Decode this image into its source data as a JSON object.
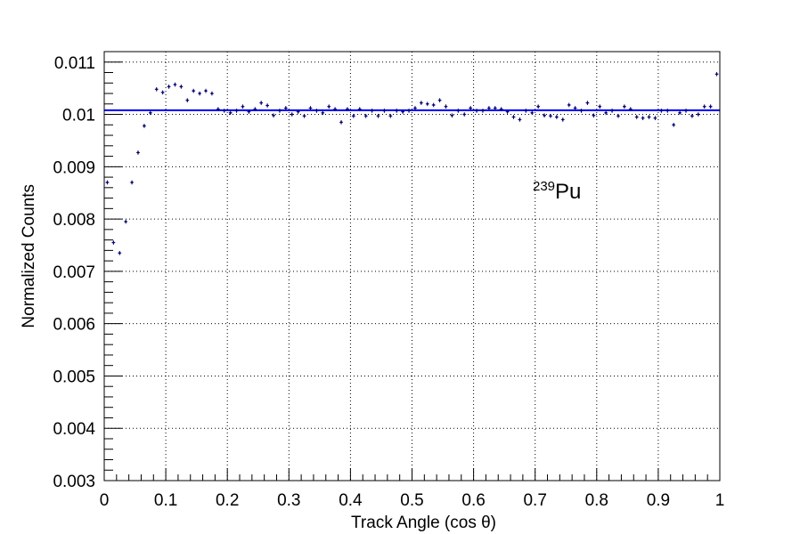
{
  "chart_data": {
    "type": "scatter",
    "xlabel": "Track Angle (cos θ)",
    "ylabel": "Normalized Counts",
    "xlim": [
      0,
      1
    ],
    "ylim": [
      0.003,
      0.0112
    ],
    "grid": true,
    "x_ticks": [
      "0",
      "0.1",
      "0.2",
      "0.3",
      "0.4",
      "0.5",
      "0.6",
      "0.7",
      "0.8",
      "0.9",
      "1"
    ],
    "y_ticks": [
      "0.003",
      "0.004",
      "0.005",
      "0.006",
      "0.007",
      "0.008",
      "0.009",
      "0.01",
      "0.011"
    ],
    "annotation": {
      "superscript": "239",
      "text": "Pu"
    },
    "marker_color": "#000080",
    "fit_color": "#0000ff",
    "bin_width": 0.01,
    "fit_line_y": 0.01008,
    "series": [
      {
        "x": [
          0.005,
          0.015,
          0.025,
          0.035,
          0.045,
          0.055,
          0.065,
          0.075,
          0.085,
          0.095,
          0.105,
          0.115,
          0.125,
          0.135,
          0.145,
          0.155,
          0.165,
          0.175,
          0.185,
          0.195,
          0.205,
          0.215,
          0.225,
          0.235,
          0.245,
          0.255,
          0.265,
          0.275,
          0.285,
          0.295,
          0.305,
          0.315,
          0.325,
          0.335,
          0.345,
          0.355,
          0.365,
          0.375,
          0.385,
          0.395,
          0.405,
          0.415,
          0.425,
          0.435,
          0.445,
          0.455,
          0.465,
          0.475,
          0.485,
          0.495,
          0.505,
          0.515,
          0.525,
          0.535,
          0.545,
          0.555,
          0.565,
          0.575,
          0.585,
          0.595,
          0.605,
          0.615,
          0.625,
          0.635,
          0.645,
          0.655,
          0.665,
          0.675,
          0.685,
          0.695,
          0.705,
          0.715,
          0.725,
          0.735,
          0.745,
          0.755,
          0.765,
          0.775,
          0.785,
          0.795,
          0.805,
          0.815,
          0.825,
          0.835,
          0.845,
          0.855,
          0.865,
          0.875,
          0.885,
          0.895,
          0.905,
          0.915,
          0.925,
          0.935,
          0.945,
          0.955,
          0.965,
          0.975,
          0.985,
          0.995
        ],
        "y": [
          0.0087,
          0.00755,
          0.00735,
          0.00795,
          0.0087,
          0.00927,
          0.00978,
          0.01003,
          0.01048,
          0.01042,
          0.01053,
          0.01057,
          0.01053,
          0.01027,
          0.01045,
          0.0104,
          0.01045,
          0.0104,
          0.0101,
          0.01007,
          0.01003,
          0.01007,
          0.01015,
          0.01005,
          0.0101,
          0.01022,
          0.01017,
          0.00998,
          0.01007,
          0.01012,
          0.01,
          0.01005,
          0.00997,
          0.01012,
          0.01007,
          0.01003,
          0.01015,
          0.0101,
          0.00985,
          0.0101,
          0.00997,
          0.0101,
          0.00997,
          0.01007,
          0.00997,
          0.01007,
          0.00997,
          0.01007,
          0.01005,
          0.01007,
          0.01012,
          0.01022,
          0.0102,
          0.01018,
          0.01027,
          0.01015,
          0.00998,
          0.01007,
          0.01,
          0.01012,
          0.01007,
          0.01007,
          0.01012,
          0.01012,
          0.0101,
          0.01005,
          0.00995,
          0.0099,
          0.01007,
          0.01003,
          0.01015,
          0.00998,
          0.00997,
          0.00995,
          0.0099,
          0.01018,
          0.01012,
          0.01007,
          0.01022,
          0.00998,
          0.01015,
          0.01003,
          0.01007,
          0.00997,
          0.01015,
          0.0101,
          0.00995,
          0.00993,
          0.00995,
          0.00993,
          0.01007,
          0.01007,
          0.0098,
          0.01003,
          0.01007,
          0.00997,
          0.01,
          0.01015,
          0.01015,
          0.01077
        ],
        "yerr": [
          4e-05,
          4e-05,
          4e-05,
          4e-05,
          4e-05,
          4e-05,
          4e-05,
          4e-05,
          4e-05,
          4e-05,
          4e-05,
          4e-05,
          4e-05,
          4e-05,
          4e-05,
          4e-05,
          4e-05,
          4e-05,
          4e-05,
          4e-05,
          4e-05,
          4e-05,
          4e-05,
          4e-05,
          4e-05,
          4e-05,
          4e-05,
          4e-05,
          4e-05,
          4e-05,
          4e-05,
          4e-05,
          4e-05,
          4e-05,
          4e-05,
          4e-05,
          4e-05,
          4e-05,
          4e-05,
          4e-05,
          4e-05,
          4e-05,
          4e-05,
          4e-05,
          4e-05,
          4e-05,
          4e-05,
          4e-05,
          4e-05,
          4e-05,
          4e-05,
          4e-05,
          4e-05,
          4e-05,
          4e-05,
          4e-05,
          4e-05,
          4e-05,
          4e-05,
          4e-05,
          4e-05,
          4e-05,
          4e-05,
          4e-05,
          4e-05,
          4e-05,
          4e-05,
          4e-05,
          4e-05,
          4e-05,
          4e-05,
          4e-05,
          4e-05,
          4e-05,
          4e-05,
          4e-05,
          4e-05,
          4e-05,
          4e-05,
          4e-05,
          4e-05,
          4e-05,
          4e-05,
          4e-05,
          4e-05,
          4e-05,
          4e-05,
          4e-05,
          4e-05,
          4e-05,
          4e-05,
          4e-05,
          4e-05,
          4e-05,
          4e-05,
          4e-05,
          4e-05,
          4e-05,
          4e-05,
          4e-05
        ]
      }
    ]
  }
}
